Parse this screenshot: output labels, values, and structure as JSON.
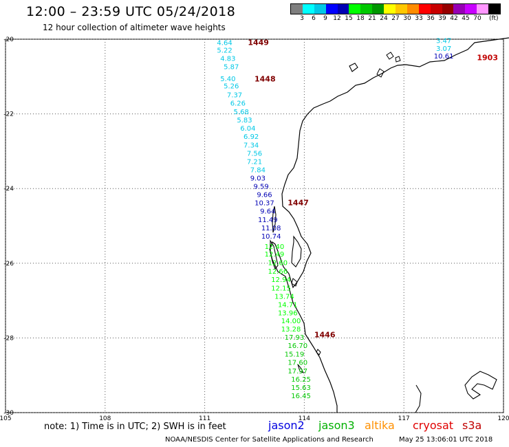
{
  "header": {
    "title": "12:00 – 23:59 UTC 05/24/2018",
    "subtitle": "12 hour collection of altimeter wave heights"
  },
  "scale": {
    "colors": [
      "#7f7f7f",
      "#00ffff",
      "#00c8e6",
      "#0000ff",
      "#0000b4",
      "#00ff00",
      "#00c800",
      "#009600",
      "#ffff00",
      "#ffc800",
      "#ff8c00",
      "#ff0000",
      "#c80000",
      "#960000",
      "#9600b4",
      "#c800ff",
      "#ff96ff",
      "#000000"
    ],
    "ticks": [
      "3",
      "6",
      "9",
      "12",
      "15",
      "18",
      "21",
      "24",
      "27",
      "30",
      "33",
      "36",
      "39",
      "42",
      "45",
      "70"
    ],
    "unit": "(ft)"
  },
  "axes": {
    "lon_ticks": [
      105,
      108,
      111,
      114,
      117,
      120
    ],
    "lat_ticks": [
      -20,
      -22,
      -24,
      -26,
      -28,
      -30
    ],
    "lon_labels": [
      "105",
      "108",
      "111",
      "114",
      "117",
      "120"
    ],
    "lat_labels": [
      "-20",
      "-22",
      "-24",
      "-26",
      "-28",
      "-30"
    ]
  },
  "track": [
    {
      "lon": 111.6,
      "lat": -20.16,
      "v": "4.64",
      "color": "#00c8e6"
    },
    {
      "lon": 111.6,
      "lat": -20.36,
      "v": "5.22",
      "color": "#00c8e6"
    },
    {
      "lon": 111.7,
      "lat": -20.58,
      "v": "4.83",
      "color": "#00c8e6"
    },
    {
      "lon": 111.8,
      "lat": -20.8,
      "v": "5.87",
      "color": "#00c8e6"
    },
    {
      "lon": 111.7,
      "lat": -21.12,
      "v": "5.40",
      "color": "#00c8e6"
    },
    {
      "lon": 111.8,
      "lat": -21.32,
      "v": "5.26",
      "color": "#00c8e6"
    },
    {
      "lon": 111.9,
      "lat": -21.56,
      "v": "7.37",
      "color": "#00c8e6"
    },
    {
      "lon": 112.0,
      "lat": -21.78,
      "v": "6.26",
      "color": "#00c8e6"
    },
    {
      "lon": 112.1,
      "lat": -22.01,
      "v": "5.68",
      "color": "#00c8e6"
    },
    {
      "lon": 112.2,
      "lat": -22.23,
      "v": "5.83",
      "color": "#00c8e6"
    },
    {
      "lon": 112.3,
      "lat": -22.45,
      "v": "6.04",
      "color": "#00c8e6"
    },
    {
      "lon": 112.4,
      "lat": -22.67,
      "v": "6.92",
      "color": "#00c8e6"
    },
    {
      "lon": 112.4,
      "lat": -22.9,
      "v": "7.34",
      "color": "#00c8e6"
    },
    {
      "lon": 112.5,
      "lat": -23.12,
      "v": "7.56",
      "color": "#00c8e6"
    },
    {
      "lon": 112.5,
      "lat": -23.34,
      "v": "7.21",
      "color": "#00c8e6"
    },
    {
      "lon": 112.6,
      "lat": -23.56,
      "v": "7.84",
      "color": "#00c8e6"
    },
    {
      "lon": 112.6,
      "lat": -23.78,
      "v": "9.03",
      "color": "#0000b4"
    },
    {
      "lon": 112.7,
      "lat": -24.01,
      "v": "9.59",
      "color": "#0000b4"
    },
    {
      "lon": 112.8,
      "lat": -24.23,
      "v": "9.66",
      "color": "#0000b4"
    },
    {
      "lon": 112.8,
      "lat": -24.45,
      "v": "10.37",
      "color": "#0000b4"
    },
    {
      "lon": 112.9,
      "lat": -24.67,
      "v": "9.64",
      "color": "#0000b4"
    },
    {
      "lon": 112.9,
      "lat": -24.9,
      "v": "11.49",
      "color": "#0000b4"
    },
    {
      "lon": 113.0,
      "lat": -25.12,
      "v": "11.08",
      "color": "#0000b4"
    },
    {
      "lon": 113.0,
      "lat": -25.34,
      "v": "10.74",
      "color": "#0000b4"
    },
    {
      "lon": 113.1,
      "lat": -25.62,
      "v": "12.40",
      "color": "#00ff00"
    },
    {
      "lon": 113.1,
      "lat": -25.82,
      "v": "12.49",
      "color": "#00ff00"
    },
    {
      "lon": 113.2,
      "lat": -26.05,
      "v": "12.60",
      "color": "#00ff00"
    },
    {
      "lon": 113.2,
      "lat": -26.28,
      "v": "12.66",
      "color": "#00ff00"
    },
    {
      "lon": 113.3,
      "lat": -26.5,
      "v": "12.94",
      "color": "#00ff00"
    },
    {
      "lon": 113.3,
      "lat": -26.73,
      "v": "12.15",
      "color": "#00ff00"
    },
    {
      "lon": 113.4,
      "lat": -26.95,
      "v": "13.74",
      "color": "#00ff00"
    },
    {
      "lon": 113.5,
      "lat": -27.17,
      "v": "14.71",
      "color": "#00ff00"
    },
    {
      "lon": 113.5,
      "lat": -27.39,
      "v": "13.96",
      "color": "#00ff00"
    },
    {
      "lon": 113.6,
      "lat": -27.61,
      "v": "14.00",
      "color": "#00ff00"
    },
    {
      "lon": 113.6,
      "lat": -27.83,
      "v": "13.28",
      "color": "#00ff00"
    },
    {
      "lon": 113.7,
      "lat": -28.05,
      "v": "17.93",
      "color": "#00c800"
    },
    {
      "lon": 113.8,
      "lat": -28.27,
      "v": "16.70",
      "color": "#00c800"
    },
    {
      "lon": 113.7,
      "lat": -28.5,
      "v": "15.19",
      "color": "#00c800"
    },
    {
      "lon": 113.8,
      "lat": -28.72,
      "v": "17.60",
      "color": "#00c800"
    },
    {
      "lon": 113.8,
      "lat": -28.95,
      "v": "17.97",
      "color": "#00c800"
    },
    {
      "lon": 113.9,
      "lat": -29.17,
      "v": "16.25",
      "color": "#00c800"
    },
    {
      "lon": 113.9,
      "lat": -29.39,
      "v": "15.63",
      "color": "#00c800"
    },
    {
      "lon": 113.9,
      "lat": -29.61,
      "v": "16.45",
      "color": "#00c800"
    }
  ],
  "track2": [
    {
      "lon": 118.2,
      "lat": -20.1,
      "v": "3.47",
      "color": "#00c8e6"
    },
    {
      "lon": 118.2,
      "lat": -20.31,
      "v": "3.07",
      "color": "#00c8e6"
    },
    {
      "lon": 118.2,
      "lat": -20.52,
      "v": "10.61",
      "color": "#0000b4"
    }
  ],
  "time_labels": [
    {
      "lon": 112.3,
      "lat": -20.16,
      "t": "1449",
      "color": "#800000"
    },
    {
      "lon": 112.5,
      "lat": -21.13,
      "t": "1448",
      "color": "#800000"
    },
    {
      "lon": 113.5,
      "lat": -24.45,
      "t": "1447",
      "color": "#800000"
    },
    {
      "lon": 114.3,
      "lat": -27.98,
      "t": "1446",
      "color": "#800000"
    },
    {
      "lon": 119.2,
      "lat": -20.56,
      "t": "1903",
      "color": "#c00000"
    }
  ],
  "footer": {
    "note": "note:  1) Time is in UTC;  2) SWH is in feet",
    "satellites": [
      {
        "name": "jason2",
        "color": "#0000e0"
      },
      {
        "name": "jason3",
        "color": "#00b000"
      },
      {
        "name": "altika",
        "color": "#ff9000"
      },
      {
        "name": "cryosat",
        "color": "#e00000"
      },
      {
        "name": "s3a",
        "color": "#c00000"
      }
    ],
    "credit": "NOAA/NESDIS Center for Satellite Applications and Research",
    "timestamp": "May 25 13:06:01 UTC 2018"
  }
}
